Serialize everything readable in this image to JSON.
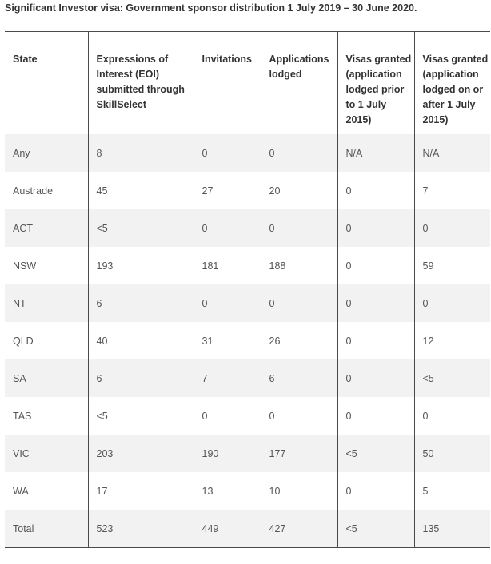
{
  "title": "Significant Investor visa: Government sponsor distribution 1 July 2019 – 30 June 2020.",
  "table": {
    "headers": [
      "State",
      "Expressions of Interest (EOI) submitted through SkillSelect",
      "Invitations",
      "Applications lodged",
      "Visas granted (application lodged prior to 1 July 2015)",
      "Visas granted (application lodged on or after 1 July 2015)"
    ],
    "rows": [
      [
        "Any",
        "8",
        "0",
        "0",
        "N/A",
        "N/A"
      ],
      [
        "Austrade",
        "45",
        "27",
        "20",
        "0",
        "7"
      ],
      [
        "ACT",
        "<5",
        "0",
        "0",
        "0",
        "0"
      ],
      [
        "NSW",
        "193",
        "181",
        "188",
        "0",
        "59"
      ],
      [
        "NT",
        "6",
        "0",
        "0",
        "0",
        "0"
      ],
      [
        "QLD",
        "40",
        "31",
        "26",
        "0",
        "12"
      ],
      [
        "SA",
        "6",
        "7",
        "6",
        "0",
        "<5"
      ],
      [
        "TAS",
        "<5",
        "0",
        "0",
        "0",
        "0"
      ],
      [
        "VIC",
        "203",
        "190",
        "177",
        "<5",
        "50"
      ],
      [
        "WA",
        "17",
        "13",
        "10",
        "0",
        "5"
      ],
      [
        "Total",
        "523",
        "449",
        "427",
        "<5",
        "135"
      ]
    ]
  }
}
